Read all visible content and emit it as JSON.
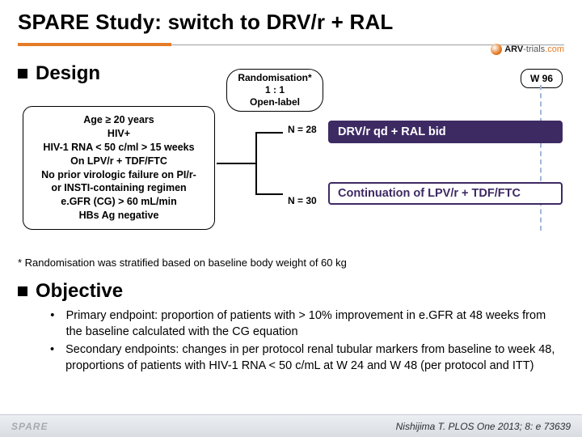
{
  "title": "SPARE Study: switch to DRV/r + RAL",
  "logo": {
    "prefix": "ARV",
    "mid": "-trials",
    "suffix": ".com"
  },
  "sections": {
    "design": "Design",
    "objective": "Objective"
  },
  "criteria_lines": [
    "Age ≥ 20 years",
    "HIV+",
    "HIV-1 RNA < 50 c/ml > 15 weeks",
    "On LPV/r + TDF/FTC",
    "No prior virologic failure on PI/r-",
    "or INSTI-containing regimen",
    "e.GFR (CG) > 60 mL/min",
    "HBs Ag negative"
  ],
  "randomisation": {
    "l1": "Randomisation*",
    "l2": "1 : 1",
    "l3": "Open-label"
  },
  "timepoint": "W 96",
  "arms": {
    "a": {
      "n_label": "N = 28",
      "text": "DRV/r qd + RAL bid",
      "bg": "#3e2a63",
      "fg": "#ffffff",
      "border": "#3e2a63"
    },
    "b": {
      "n_label": "N = 30",
      "text": "Continuation of LPV/r + TDF/FTC",
      "bg": "#ffffff",
      "fg": "#3e2a63",
      "border": "#3e2a63"
    }
  },
  "dash_color": "#9fb8d9",
  "footnote": "* Randomisation was stratified based on baseline body weight of 60 kg",
  "objectives": [
    "Primary endpoint: proportion of patients with > 10% improvement in e.GFR at 48 weeks from the baseline calculated with the CG equation",
    "Secondary endpoints: changes in per protocol renal tubular markers from baseline to week 48, proportions of patients with HIV-1 RNA < 50 c/mL at W 24 and W 48 (per protocol and ITT)"
  ],
  "footer": {
    "tag": "SPARE",
    "citation": "Nishijima T. PLOS One 2013; 8: e 73639"
  }
}
